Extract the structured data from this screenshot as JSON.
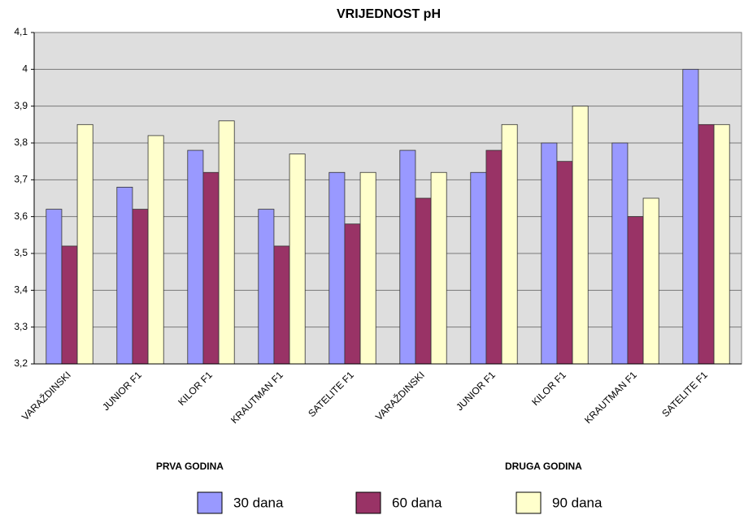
{
  "chart_data": {
    "type": "bar",
    "title": "VRIJEDNOST pH",
    "categories": [
      "VARAŽDINSKI",
      "JUNIOR F1",
      "KILOR F1",
      "KRAUTMAN F1",
      "SATELITE F1",
      "VARAŽDINSKI",
      "JUNIOR F1",
      "KILOR F1",
      "KRAUTMAN F1",
      "SATELITE F1"
    ],
    "group_labels": [
      "PRVA GODINA",
      "DRUGA GODINA"
    ],
    "series": [
      {
        "name": "30 dana",
        "color": "#9999ff",
        "values": [
          3.62,
          3.68,
          3.78,
          3.62,
          3.72,
          3.78,
          3.72,
          3.8,
          3.8,
          4.0
        ]
      },
      {
        "name": "60 dana",
        "color": "#993366",
        "values": [
          3.52,
          3.62,
          3.72,
          3.52,
          3.58,
          3.65,
          3.78,
          3.75,
          3.6,
          3.85
        ]
      },
      {
        "name": "90 dana",
        "color": "#ffffcc",
        "values": [
          3.85,
          3.82,
          3.86,
          3.77,
          3.72,
          3.72,
          3.85,
          3.9,
          3.65,
          3.85
        ]
      }
    ],
    "ylim": [
      3.2,
      4.1
    ],
    "yticks": [
      {
        "value": 3.2,
        "label": "3,2"
      },
      {
        "value": 3.3,
        "label": "3,3"
      },
      {
        "value": 3.4,
        "label": "3,4"
      },
      {
        "value": 3.5,
        "label": "3,5"
      },
      {
        "value": 3.6,
        "label": "3,6"
      },
      {
        "value": 3.7,
        "label": "3,7"
      },
      {
        "value": 3.8,
        "label": "3,8"
      },
      {
        "value": 3.9,
        "label": "3,9"
      },
      4,
      {
        "value": 4.1,
        "label": "4,1"
      }
    ],
    "grid": true,
    "legend": "bottom"
  }
}
